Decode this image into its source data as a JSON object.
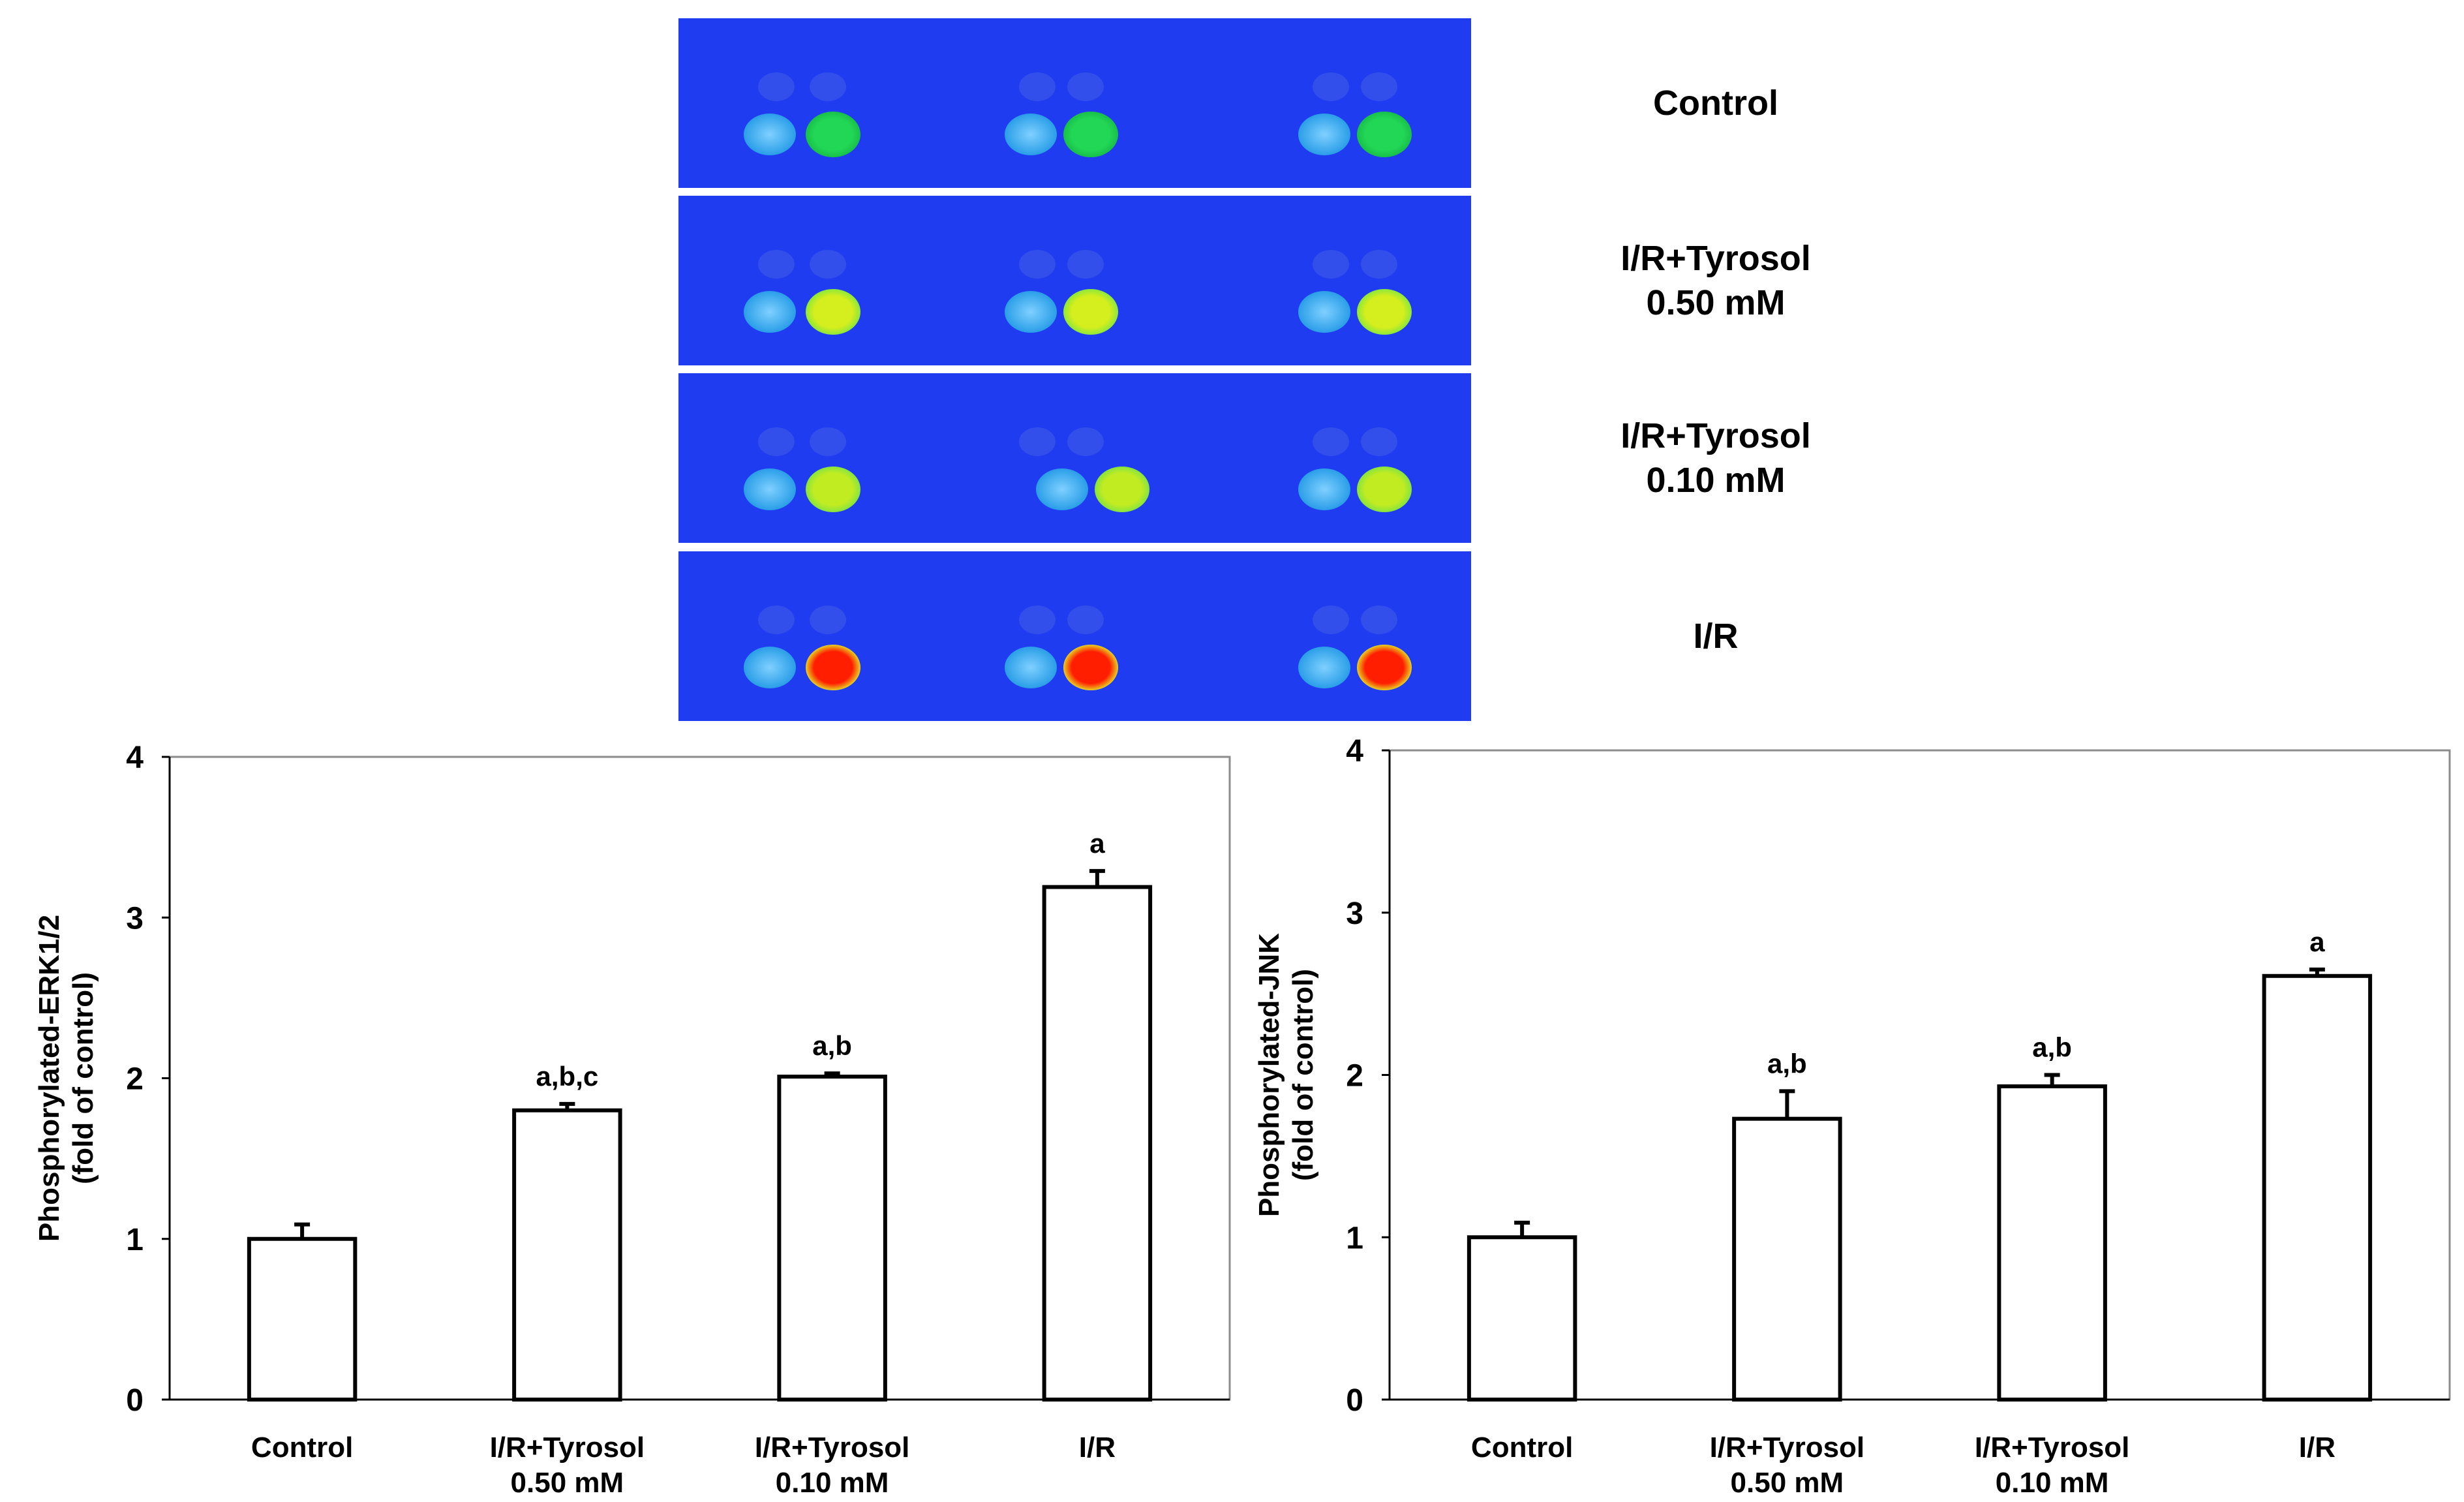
{
  "blot_panel": {
    "rows": [
      {
        "label_lines": [
          "Control"
        ],
        "spot_color": "#22d656",
        "spot_edge": "#18c04a"
      },
      {
        "label_lines": [
          "I/R+Tyrosol",
          "0.50 mM"
        ],
        "spot_color": "#d4ee1e",
        "spot_edge": "#8ce83a"
      },
      {
        "label_lines": [
          "I/R+Tyrosol",
          "0.10 mM"
        ],
        "spot_color": "#c2ec22",
        "spot_edge": "#86e43e"
      },
      {
        "label_lines": [
          "I/R"
        ],
        "spot_color": "#ff1e00",
        "spot_edge": "#e8d020"
      }
    ],
    "background_color": "#1f3cf0",
    "reference_spot_color": "#2a9ee8"
  },
  "chart_data": [
    {
      "type": "bar",
      "title": "",
      "xlabel": "",
      "ylabel": [
        "Phosphorylated-ERK1/2",
        "(fold of control)"
      ],
      "categories": [
        [
          "Control"
        ],
        [
          "I/R+Tyrosol",
          "0.50 mM"
        ],
        [
          "I/R+Tyrosol",
          "0.10 mM"
        ],
        [
          "I/R"
        ]
      ],
      "values": [
        1.0,
        1.8,
        2.01,
        3.19
      ],
      "errors": [
        0.09,
        0.04,
        0.02,
        0.1
      ],
      "annotations": [
        "",
        "a,b,c",
        "a,b",
        "a"
      ],
      "yticks": [
        0,
        1,
        2,
        3,
        4
      ],
      "ylim": [
        0,
        4
      ],
      "grid": false
    },
    {
      "type": "bar",
      "title": "",
      "xlabel": "",
      "ylabel": [
        "Phosphorylated-JNK",
        "(fold of control)"
      ],
      "categories": [
        [
          "Control"
        ],
        [
          "I/R+Tyrosol",
          "0.50 mM"
        ],
        [
          "I/R+Tyrosol",
          "0.10 mM"
        ],
        [
          "I/R"
        ]
      ],
      "values": [
        1.0,
        1.73,
        1.93,
        2.61
      ],
      "errors": [
        0.09,
        0.17,
        0.07,
        0.04
      ],
      "annotations": [
        "",
        "a,b",
        "a,b",
        "a"
      ],
      "yticks": [
        0,
        1,
        2,
        3,
        4
      ],
      "ylim": [
        0,
        4
      ],
      "grid": false
    }
  ]
}
